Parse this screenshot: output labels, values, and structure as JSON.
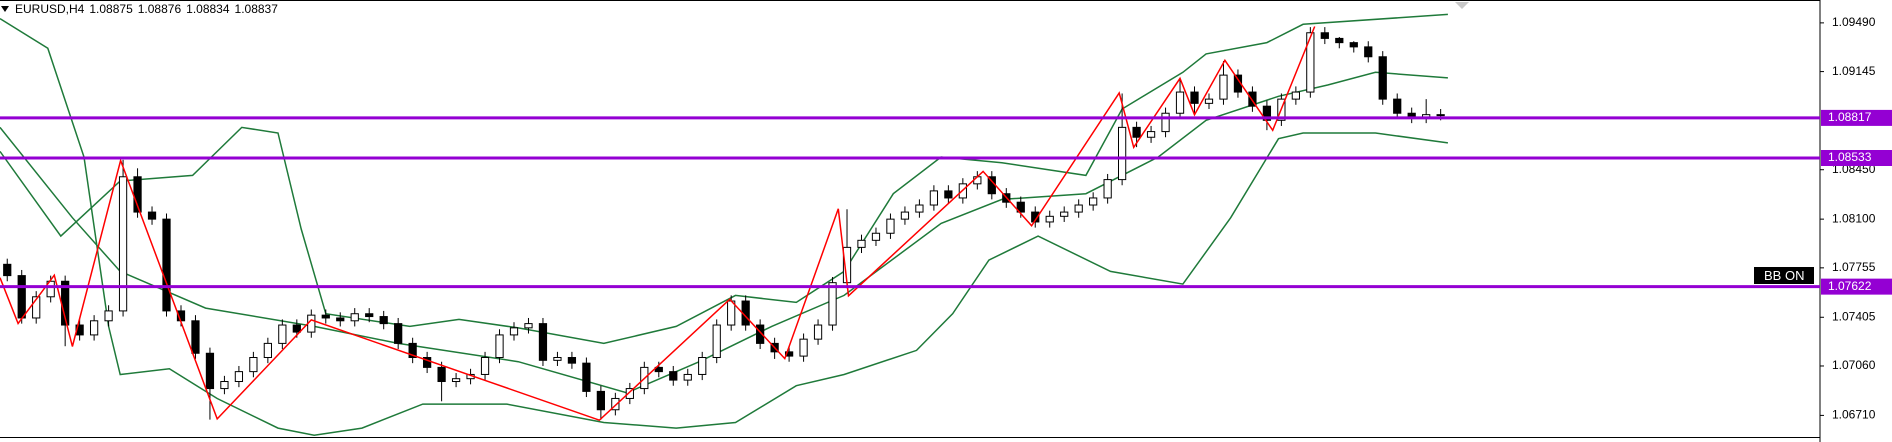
{
  "chart_data": {
    "type": "candlestick",
    "header": {
      "symbol": "EURUSD,H4",
      "ohlc": [
        1.08875,
        1.08876,
        1.08834,
        1.08837
      ]
    },
    "up_color": "#ffffff",
    "down_color": "#000000",
    "xlim": [
      -0.5,
      125.2
    ],
    "ylim": [
      1.06557,
      1.09652
    ],
    "yticks": [
      {
        "value": 1.0949,
        "label": "1.09490"
      },
      {
        "value": 1.09145,
        "label": "1.09145"
      },
      {
        "value": 1.0845,
        "label": "1.08450"
      },
      {
        "value": 1.081,
        "label": "1.08100"
      },
      {
        "value": 1.07755,
        "label": "1.07755"
      },
      {
        "value": 1.07405,
        "label": "1.07405"
      },
      {
        "value": 1.0706,
        "label": "1.07060"
      },
      {
        "value": 1.0671,
        "label": "1.06710"
      }
    ],
    "grid": false,
    "ohlc": [
      [
        1.0778,
        1.0782,
        1.0766,
        1.077
      ],
      [
        1.077,
        1.0774,
        1.0736,
        1.074
      ],
      [
        1.074,
        1.0759,
        1.0736,
        1.0755
      ],
      [
        1.0755,
        1.077,
        1.0751,
        1.0766
      ],
      [
        1.0766,
        1.077,
        1.072,
        1.0735
      ],
      [
        1.0735,
        1.0739,
        1.0724,
        1.0728
      ],
      [
        1.0728,
        1.0742,
        1.0724,
        1.0738
      ],
      [
        1.0738,
        1.0749,
        1.0734,
        1.0745
      ],
      [
        1.0745,
        1.0852,
        1.0741,
        1.084
      ],
      [
        1.084,
        1.0846,
        1.0811,
        1.0815
      ],
      [
        1.0815,
        1.0819,
        1.0806,
        1.081
      ],
      [
        1.081,
        1.0814,
        1.0741,
        1.0745
      ],
      [
        1.0745,
        1.0749,
        1.0734,
        1.0738
      ],
      [
        1.0738,
        1.0742,
        1.0711,
        1.0715
      ],
      [
        1.0715,
        1.0719,
        1.0668,
        1.069
      ],
      [
        1.069,
        1.0699,
        1.0686,
        1.0695
      ],
      [
        1.0695,
        1.0706,
        1.0691,
        1.0702
      ],
      [
        1.0702,
        1.0716,
        1.0698,
        1.0712
      ],
      [
        1.0712,
        1.0726,
        1.0708,
        1.0722
      ],
      [
        1.0722,
        1.0739,
        1.0718,
        1.0735
      ],
      [
        1.0735,
        1.0739,
        1.0726,
        1.073
      ],
      [
        1.073,
        1.0746,
        1.0726,
        1.0742
      ],
      [
        1.0742,
        1.0746,
        1.0736,
        1.074
      ],
      [
        1.074,
        1.0744,
        1.0734,
        1.0738
      ],
      [
        1.0738,
        1.0747,
        1.0734,
        1.0743
      ],
      [
        1.0743,
        1.0747,
        1.0737,
        1.0741
      ],
      [
        1.0741,
        1.0745,
        1.0732,
        1.0736
      ],
      [
        1.0736,
        1.074,
        1.0718,
        1.0722
      ],
      [
        1.0722,
        1.0726,
        1.0708,
        1.0712
      ],
      [
        1.0712,
        1.0716,
        1.0701,
        1.0705
      ],
      [
        1.0705,
        1.0709,
        1.0681,
        1.0695
      ],
      [
        1.0695,
        1.0701,
        1.0691,
        1.0697
      ],
      [
        1.0697,
        1.0704,
        1.0693,
        1.07
      ],
      [
        1.07,
        1.0716,
        1.0696,
        1.0712
      ],
      [
        1.0712,
        1.0732,
        1.0708,
        1.0728
      ],
      [
        1.0728,
        1.0737,
        1.0724,
        1.0733
      ],
      [
        1.0733,
        1.074,
        1.0729,
        1.0736
      ],
      [
        1.0736,
        1.074,
        1.0706,
        1.071
      ],
      [
        1.071,
        1.0716,
        1.0706,
        1.0712
      ],
      [
        1.0712,
        1.0716,
        1.0704,
        1.0708
      ],
      [
        1.0708,
        1.0712,
        1.0684,
        1.0688
      ],
      [
        1.0688,
        1.0692,
        1.0668,
        1.0675
      ],
      [
        1.0675,
        1.0687,
        1.0671,
        1.0683
      ],
      [
        1.0683,
        1.0694,
        1.0679,
        1.069
      ],
      [
        1.069,
        1.0709,
        1.0686,
        1.0705
      ],
      [
        1.0705,
        1.0709,
        1.0698,
        1.0702
      ],
      [
        1.0702,
        1.0706,
        1.0692,
        1.0696
      ],
      [
        1.0696,
        1.0704,
        1.0692,
        1.07
      ],
      [
        1.07,
        1.0716,
        1.0696,
        1.0712
      ],
      [
        1.0712,
        1.0739,
        1.0708,
        1.0735
      ],
      [
        1.0735,
        1.0756,
        1.0731,
        1.0752
      ],
      [
        1.0752,
        1.0756,
        1.0731,
        1.0735
      ],
      [
        1.0735,
        1.0739,
        1.0718,
        1.0722
      ],
      [
        1.0722,
        1.0726,
        1.0711,
        1.0716
      ],
      [
        1.0716,
        1.072,
        1.0709,
        1.0713
      ],
      [
        1.0713,
        1.0729,
        1.0709,
        1.0725
      ],
      [
        1.0725,
        1.0739,
        1.0721,
        1.0735
      ],
      [
        1.0735,
        1.0769,
        1.0731,
        1.0765
      ],
      [
        1.0765,
        1.0817,
        1.0761,
        1.079
      ],
      [
        1.079,
        1.0799,
        1.0786,
        1.0795
      ],
      [
        1.0795,
        1.0804,
        1.0791,
        1.08
      ],
      [
        1.08,
        1.0814,
        1.0796,
        1.081
      ],
      [
        1.081,
        1.0819,
        1.0806,
        1.0815
      ],
      [
        1.0815,
        1.0824,
        1.0811,
        1.082
      ],
      [
        1.082,
        1.0834,
        1.0816,
        1.083
      ],
      [
        1.083,
        1.0834,
        1.0821,
        1.0825
      ],
      [
        1.0825,
        1.0839,
        1.0821,
        1.0835
      ],
      [
        1.0835,
        1.0844,
        1.0831,
        1.084
      ],
      [
        1.084,
        1.0844,
        1.0824,
        1.0828
      ],
      [
        1.0828,
        1.0832,
        1.0818,
        1.0822
      ],
      [
        1.0822,
        1.0826,
        1.0811,
        1.0815
      ],
      [
        1.0815,
        1.0819,
        1.0804,
        1.0808
      ],
      [
        1.0808,
        1.0816,
        1.0804,
        1.0812
      ],
      [
        1.0812,
        1.0819,
        1.0808,
        1.0815
      ],
      [
        1.0815,
        1.0824,
        1.0811,
        1.082
      ],
      [
        1.082,
        1.0829,
        1.0816,
        1.0825
      ],
      [
        1.0825,
        1.0842,
        1.0821,
        1.0838
      ],
      [
        1.0838,
        1.0899,
        1.0834,
        1.0875
      ],
      [
        1.0875,
        1.0879,
        1.0861,
        1.0868
      ],
      [
        1.0868,
        1.0876,
        1.0864,
        1.0872
      ],
      [
        1.0872,
        1.0889,
        1.0868,
        1.0885
      ],
      [
        1.0885,
        1.091,
        1.0881,
        1.09
      ],
      [
        1.09,
        1.0904,
        1.0884,
        1.0892
      ],
      [
        1.0892,
        1.0899,
        1.0888,
        1.0895
      ],
      [
        1.0895,
        1.0922,
        1.0891,
        1.0912
      ],
      [
        1.0912,
        1.0916,
        1.0896,
        1.09
      ],
      [
        1.09,
        1.0904,
        1.0886,
        1.089
      ],
      [
        1.089,
        1.0894,
        1.0873,
        1.088
      ],
      [
        1.088,
        1.0899,
        1.0876,
        1.0895
      ],
      [
        1.0895,
        1.0904,
        1.0891,
        1.09
      ],
      [
        1.09,
        1.0946,
        1.0896,
        1.0942
      ],
      [
        1.0942,
        1.0946,
        1.0934,
        1.0938
      ],
      [
        1.0938,
        1.0939,
        1.0931,
        1.0935
      ],
      [
        1.0935,
        1.0936,
        1.0928,
        1.0932
      ],
      [
        1.0932,
        1.0936,
        1.0921,
        1.0925
      ],
      [
        1.0925,
        1.0929,
        1.0891,
        1.0895
      ],
      [
        1.0895,
        1.0899,
        1.0881,
        1.0885
      ],
      [
        1.0885,
        1.0889,
        1.0878,
        1.0882
      ],
      [
        1.0882,
        1.0895,
        1.0878,
        1.0884
      ],
      [
        1.0884,
        1.0888,
        1.088,
        1.0884
      ]
    ],
    "bands": [
      {
        "color": "#1f7a3a",
        "x": [
          -0.5,
          3.7,
          7.8,
          12.8,
          16.2,
          18.7,
          20.3,
          22,
          27.8,
          31.2,
          35.3,
          41.2,
          46.2,
          50.3,
          54.5,
          57.8,
          61.2,
          64.5,
          68.7,
          74.5,
          77,
          81.2,
          82.8,
          87,
          89.5,
          99.5
        ],
        "values": [
          1.0858,
          1.0798,
          1.0837,
          1.0841,
          1.0875,
          1.0871,
          1.0803,
          1.0743,
          1.0734,
          1.0739,
          1.0733,
          1.0722,
          1.0734,
          1.0756,
          1.0751,
          1.0773,
          1.0828,
          1.0854,
          1.085,
          1.0841,
          1.0888,
          1.0914,
          1.0927,
          1.0935,
          1.0948,
          1.0955
        ]
      },
      {
        "color": "#1f7a3a",
        "x": [
          -0.5,
          4.5,
          7.8,
          13.7,
          21.2,
          27,
          35.3,
          42.8,
          47.8,
          52.8,
          57.8,
          64.5,
          68.7,
          74.5,
          79.5,
          82.8,
          87.8,
          91.2,
          94.5,
          99.5
        ],
        "values": [
          1.0875,
          1.0811,
          1.0773,
          1.0747,
          1.0734,
          1.0722,
          1.0709,
          1.0687,
          1.0709,
          1.0734,
          1.0756,
          1.0807,
          1.0824,
          1.0828,
          1.0854,
          1.088,
          1.0897,
          1.0905,
          1.0914,
          1.091
        ]
      },
      {
        "color": "#1f7a3a",
        "x": [
          -0.5,
          2.8,
          5.3,
          7,
          7.8,
          11.2,
          14.5,
          18.7,
          21.2,
          24.5,
          28.7,
          34.5,
          41.2,
          46.2,
          50.3,
          54.5,
          57.8,
          62.8,
          65.3,
          67.8,
          71.2,
          76.2,
          81.2,
          84.5,
          87.8,
          89.5,
          94.5,
          99.5
        ],
        "values": [
          1.0952,
          1.0931,
          1.0854,
          1.0734,
          1.07,
          1.0704,
          1.0683,
          1.0662,
          1.0657,
          1.0662,
          1.0679,
          1.0679,
          1.0666,
          1.0662,
          1.0666,
          1.0692,
          1.07,
          1.0717,
          1.0743,
          1.0781,
          1.0798,
          1.0773,
          1.0764,
          1.0811,
          1.0867,
          1.0871,
          1.0871,
          1.0864
        ]
      }
    ],
    "zigzag": {
      "color": "#ff0000",
      "x": [
        -0.5,
        0.75,
        3.25,
        4.5,
        7.83,
        14.5,
        21,
        40.9,
        49.9,
        53.7,
        57.4,
        58.1,
        67.4,
        70.75,
        76.8,
        77.8,
        81,
        82,
        84.1,
        87.4,
        90.3
      ],
      "values": [
        1.07685,
        1.07361,
        1.07703,
        1.07198,
        1.08515,
        1.06685,
        1.07386,
        1.06676,
        1.07532,
        1.07112,
        1.08173,
        1.07557,
        1.08438,
        1.08053,
        1.08994,
        1.08609,
        1.09097,
        1.0884,
        1.09225,
        1.08729,
        1.09464
      ]
    },
    "levels": {
      "color": "#9400d3",
      "values": [
        1.08817,
        1.08533,
        1.07622
      ]
    },
    "badge": "BB ON"
  }
}
